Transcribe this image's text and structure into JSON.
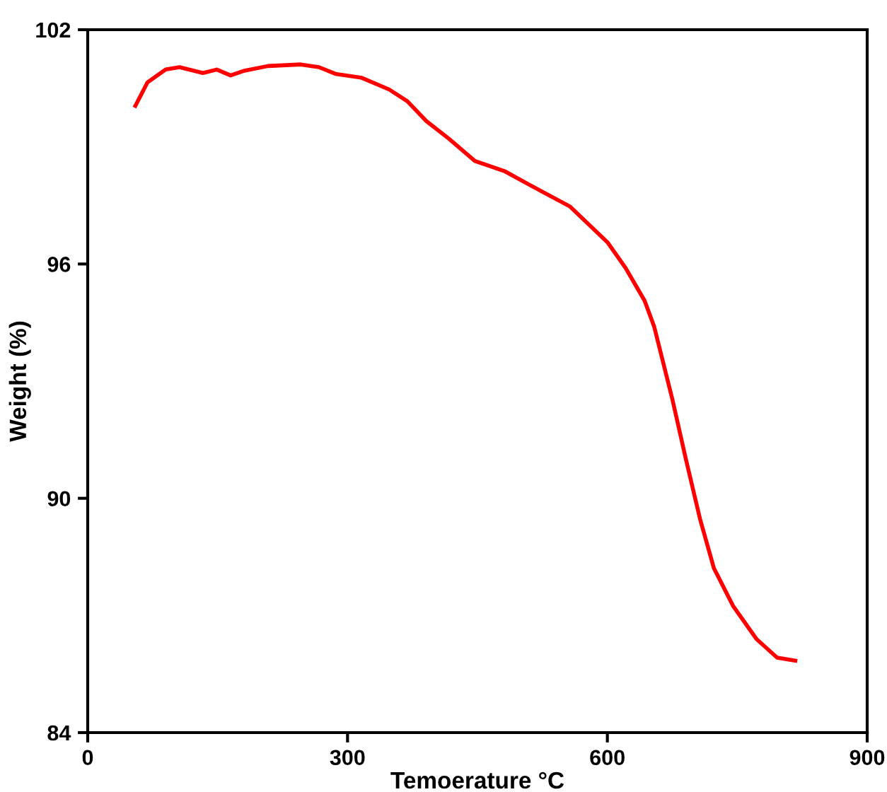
{
  "chart_data": {
    "type": "line",
    "xlabel": "Temoerature °C",
    "ylabel": "Weight (%)",
    "xlim": [
      0,
      900
    ],
    "ylim": [
      84,
      102
    ],
    "xticks": [
      0,
      300,
      600,
      900
    ],
    "yticks": [
      84,
      90,
      96,
      102
    ],
    "grid": false,
    "legend": false,
    "marker": "none",
    "line_style": "solid",
    "series": [
      {
        "color": "#ff0000",
        "x": [
          55,
          69,
          90,
          106,
          133,
          149,
          165,
          181,
          208,
          246,
          267,
          286,
          316,
          348,
          369,
          391,
          417,
          447,
          482,
          509,
          557,
          600,
          621,
          643,
          654,
          675,
          691,
          707,
          723,
          745,
          772,
          796,
          817
        ],
        "values": [
          100.05,
          100.65,
          100.98,
          101.04,
          100.89,
          100.98,
          100.83,
          100.95,
          101.07,
          101.11,
          101.04,
          100.87,
          100.77,
          100.47,
          100.17,
          99.66,
          99.21,
          98.64,
          98.37,
          98.04,
          97.47,
          96.56,
          95.9,
          95.06,
          94.4,
          92.54,
          90.97,
          89.47,
          88.21,
          87.25,
          86.4,
          85.92,
          85.84
        ]
      }
    ]
  }
}
